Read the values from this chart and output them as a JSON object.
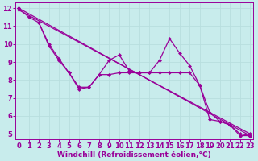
{
  "xlabel": "Windchill (Refroidissement éolien,°C)",
  "bg_color": "#c8ecec",
  "line_color": "#990099",
  "grid_color": "#b8dede",
  "xlim": [
    -0.3,
    23.3
  ],
  "ylim": [
    4.7,
    12.3
  ],
  "yticks": [
    5,
    6,
    7,
    8,
    9,
    10,
    11,
    12
  ],
  "xticks": [
    0,
    1,
    2,
    3,
    4,
    5,
    6,
    7,
    8,
    9,
    10,
    11,
    12,
    13,
    14,
    15,
    16,
    17,
    18,
    19,
    20,
    21,
    22,
    23
  ],
  "line_straight1": {
    "x": [
      0,
      23
    ],
    "y": [
      12.0,
      4.9
    ]
  },
  "line_straight2": {
    "x": [
      0,
      23
    ],
    "y": [
      11.9,
      5.0
    ]
  },
  "line_wiggly1": {
    "x": [
      0,
      1,
      2,
      3,
      4,
      5,
      6,
      7,
      8,
      9,
      10,
      11,
      12,
      13,
      14,
      15,
      16,
      17,
      18,
      19,
      20,
      21,
      22,
      23
    ],
    "y": [
      12.0,
      11.5,
      11.2,
      9.9,
      9.1,
      8.4,
      7.6,
      7.6,
      8.3,
      9.1,
      9.4,
      8.5,
      8.4,
      8.4,
      9.1,
      10.3,
      9.5,
      8.8,
      7.7,
      5.8,
      5.7,
      5.5,
      4.9,
      4.9
    ]
  },
  "line_wiggly2": {
    "x": [
      2,
      3,
      4,
      5,
      6,
      7,
      8,
      9,
      10,
      11,
      12,
      13,
      14,
      15,
      16,
      17,
      18,
      19,
      20,
      21,
      22,
      23
    ],
    "y": [
      11.2,
      10.0,
      9.2,
      8.4,
      7.5,
      7.6,
      8.3,
      8.3,
      8.4,
      8.4,
      8.4,
      8.4,
      8.4,
      8.4,
      8.4,
      8.4,
      7.7,
      6.2,
      5.7,
      5.5,
      5.0,
      4.9
    ]
  },
  "marker": "D",
  "marker_size": 2.5,
  "linewidth": 0.9,
  "font_size": 6,
  "xlabel_fontsize": 6.5
}
